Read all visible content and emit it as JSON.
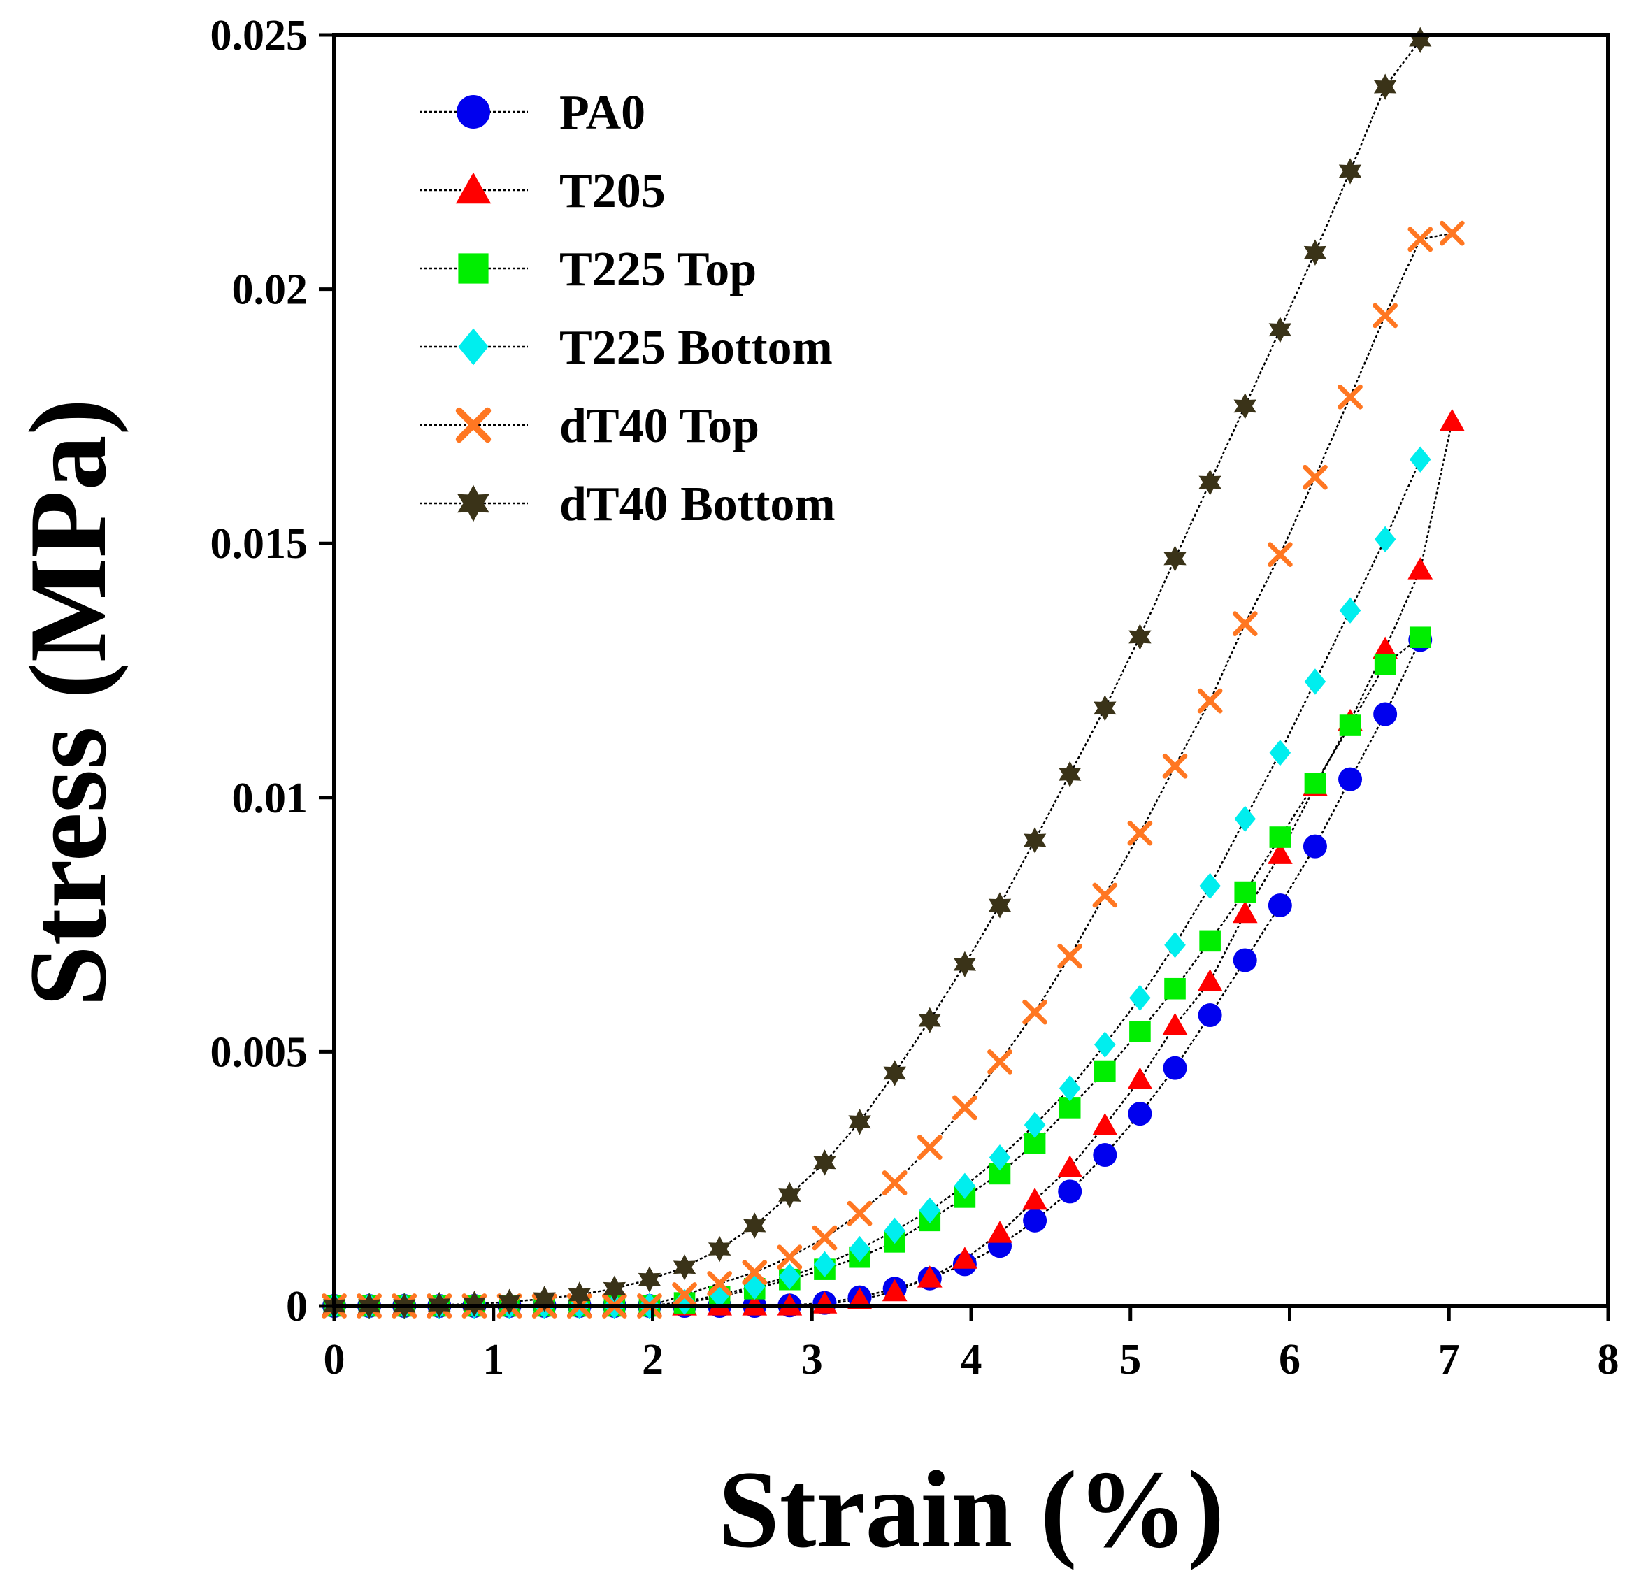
{
  "chart_data": {
    "type": "scatter",
    "title": "",
    "xlabel": "Strain (%)",
    "ylabel": "Stress (MPa)",
    "xlim": [
      0,
      8
    ],
    "ylim": [
      0,
      0.025
    ],
    "xticks": [
      "0",
      "1",
      "2",
      "3",
      "4",
      "5",
      "6",
      "7",
      "8"
    ],
    "yticks": [
      "0",
      "0.005",
      "0.01",
      "0.015",
      "0.02",
      "0.025"
    ],
    "grid": false,
    "legend_position": "top-left",
    "series": [
      {
        "name": "PA0",
        "marker": "circle",
        "color": "#0000ee",
        "x": [
          0,
          0.22,
          0.44,
          0.66,
          0.88,
          1.1,
          1.32,
          1.54,
          1.76,
          1.98,
          2.2,
          2.42,
          2.64,
          2.86,
          3.08,
          3.3,
          3.52,
          3.74,
          3.96,
          4.18,
          4.4,
          4.62,
          4.84,
          5.06,
          5.28,
          5.5,
          5.72,
          5.94,
          6.16,
          6.38,
          6.6,
          6.82
        ],
        "y": [
          0,
          0,
          0,
          0,
          0,
          0,
          0,
          0,
          0,
          0,
          0,
          0,
          0,
          1e-05,
          6e-05,
          0.00017,
          0.00034,
          0.00054,
          0.00082,
          0.00118,
          0.00168,
          0.00225,
          0.00297,
          0.00378,
          0.00468,
          0.00572,
          0.0068,
          0.00788,
          0.00904,
          0.01036,
          0.01164,
          0.0131
        ]
      },
      {
        "name": "T205",
        "marker": "triangle",
        "color": "#ff0000",
        "x": [
          0,
          0.22,
          0.44,
          0.66,
          0.88,
          1.1,
          1.32,
          1.54,
          1.76,
          1.98,
          2.2,
          2.42,
          2.64,
          2.86,
          3.08,
          3.3,
          3.52,
          3.74,
          3.96,
          4.18,
          4.4,
          4.62,
          4.84,
          5.06,
          5.28,
          5.5,
          5.72,
          5.94,
          6.16,
          6.38,
          6.6,
          6.82,
          7.02
        ],
        "y": [
          0,
          0,
          0,
          0,
          0,
          0,
          0,
          0,
          0,
          0,
          0,
          0,
          0,
          0,
          4e-05,
          0.00012,
          0.00028,
          0.00055,
          0.00092,
          0.00143,
          0.00208,
          0.00272,
          0.00355,
          0.00445,
          0.00552,
          0.00638,
          0.00772,
          0.00888,
          0.01022,
          0.0115,
          0.01292,
          0.01448,
          0.0174
        ]
      },
      {
        "name": "T225 Top",
        "marker": "square",
        "color": "#00ee00",
        "x": [
          0,
          0.22,
          0.44,
          0.66,
          0.88,
          1.1,
          1.32,
          1.54,
          1.76,
          1.98,
          2.2,
          2.42,
          2.64,
          2.86,
          3.08,
          3.3,
          3.52,
          3.74,
          3.96,
          4.18,
          4.4,
          4.62,
          4.84,
          5.06,
          5.28,
          5.5,
          5.72,
          5.94,
          6.16,
          6.38,
          6.6,
          6.82
        ],
        "y": [
          0,
          0,
          0,
          0,
          0,
          0,
          0,
          0,
          0,
          0,
          6e-05,
          0.00018,
          0.00034,
          0.00052,
          0.00072,
          0.00096,
          0.00126,
          0.00168,
          0.00214,
          0.0026,
          0.0032,
          0.0039,
          0.00462,
          0.0054,
          0.00624,
          0.00718,
          0.00814,
          0.00922,
          0.01028,
          0.01142,
          0.01262,
          0.01315
        ]
      },
      {
        "name": "T225 Bottom",
        "marker": "diamond",
        "color": "#00eeee",
        "x": [
          0,
          0.22,
          0.44,
          0.66,
          0.88,
          1.1,
          1.32,
          1.54,
          1.76,
          1.98,
          2.2,
          2.42,
          2.64,
          2.86,
          3.08,
          3.3,
          3.52,
          3.74,
          3.96,
          4.18,
          4.4,
          4.62,
          4.84,
          5.06,
          5.28,
          5.5,
          5.72,
          5.94,
          6.16,
          6.38,
          6.6,
          6.82
        ],
        "y": [
          0,
          0,
          0,
          0,
          0,
          0,
          0,
          0,
          0,
          0,
          8e-05,
          0.00022,
          0.00038,
          0.00058,
          0.00082,
          0.00112,
          0.00148,
          0.00188,
          0.00236,
          0.00292,
          0.00356,
          0.00428,
          0.00514,
          0.00606,
          0.0071,
          0.00826,
          0.00958,
          0.01088,
          0.01228,
          0.01368,
          0.01508,
          0.01665
        ]
      },
      {
        "name": "dT40 Top",
        "marker": "x",
        "color": "#ff7722",
        "x": [
          0,
          0.22,
          0.44,
          0.66,
          0.88,
          1.1,
          1.32,
          1.54,
          1.76,
          1.98,
          2.2,
          2.42,
          2.64,
          2.86,
          3.08,
          3.3,
          3.52,
          3.74,
          3.96,
          4.18,
          4.4,
          4.62,
          4.84,
          5.06,
          5.28,
          5.5,
          5.72,
          5.94,
          6.16,
          6.38,
          6.6,
          6.82,
          7.02
        ],
        "y": [
          0,
          0,
          0,
          0,
          0,
          0,
          0,
          0,
          0,
          0,
          0.00022,
          0.00044,
          0.00066,
          0.00096,
          0.00134,
          0.00182,
          0.00242,
          0.00312,
          0.0039,
          0.0048,
          0.00578,
          0.00688,
          0.00808,
          0.0093,
          0.01062,
          0.0119,
          0.01342,
          0.01478,
          0.0163,
          0.01788,
          0.01948,
          0.02098,
          0.0211
        ]
      },
      {
        "name": "dT40 Bottom",
        "marker": "star",
        "color": "#3a3318",
        "x": [
          0,
          0.22,
          0.44,
          0.66,
          0.88,
          1.1,
          1.32,
          1.54,
          1.76,
          1.98,
          2.2,
          2.42,
          2.64,
          2.86,
          3.08,
          3.3,
          3.52,
          3.74,
          3.96,
          4.18,
          4.4,
          4.62,
          4.84,
          5.06,
          5.28,
          5.5,
          5.72,
          5.94,
          6.16,
          6.38,
          6.6,
          6.82
        ],
        "y": [
          0,
          0,
          0,
          2e-05,
          4e-05,
          8e-05,
          0.00014,
          0.00022,
          0.00034,
          0.00052,
          0.00076,
          0.00112,
          0.00158,
          0.00218,
          0.00282,
          0.00362,
          0.00458,
          0.00562,
          0.00672,
          0.00788,
          0.00916,
          0.01046,
          0.01176,
          0.01316,
          0.0147,
          0.0162,
          0.0177,
          0.0192,
          0.02072,
          0.02232,
          0.02398,
          0.0249
        ]
      }
    ]
  }
}
